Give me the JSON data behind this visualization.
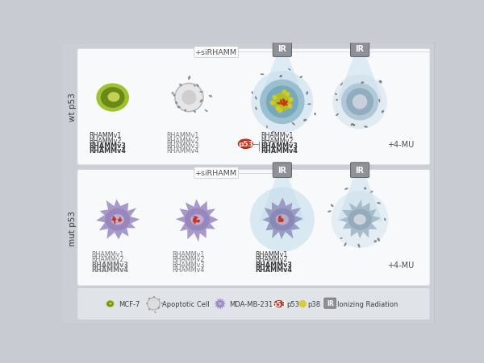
{
  "bg_color": "#c8ccd2",
  "panel_bg": "#f8f9fb",
  "wt_label": "wt p53",
  "mut_label": "mut p53",
  "sirhamm_label": "+siRHAMM",
  "fourmu_label": "+4-MU",
  "ir_label": "IR",
  "mcf7_outer": "#9ec230",
  "mcf7_inner": "#6a8a18",
  "mcf7_nucleus": "#d4e060",
  "apoptotic_gray": "#909090",
  "apoptotic_frag": "#787878",
  "mda_outer": "#a898cc",
  "mda_inner": "#9080b8",
  "mda_nucleus_bg": "#c0b0d8",
  "mda_nucleus_outline": "#b0a0c8",
  "ir_device_body": "#909098",
  "ir_device_dark": "#606068",
  "ir_beam": "#c8e0f0",
  "ir_cell_blue_outer": "#a8c8d8",
  "ir_cell_blue_inner": "#88b0c8",
  "wt_ir_nucleus_yellow": "#c8cc30",
  "chromosome_red": "#cc3010",
  "yellow_dot": "#d8cc20",
  "p53_red": "#dd2810",
  "fragment_dark": "#686868",
  "text_rhamm_dark": "#484848",
  "text_rhamm_light": "#787878",
  "text_label": "#404040",
  "wt_cell4_outer": "#b0c8d8",
  "wt_cell4_inner": "#90aec0",
  "wt_cell4_nucleus": "#c8d0dc",
  "mut_cell4_outer": "#a0b8c8",
  "mut_cell4_inner": "#88a0b0",
  "legend_bg": "#e0e4e8"
}
